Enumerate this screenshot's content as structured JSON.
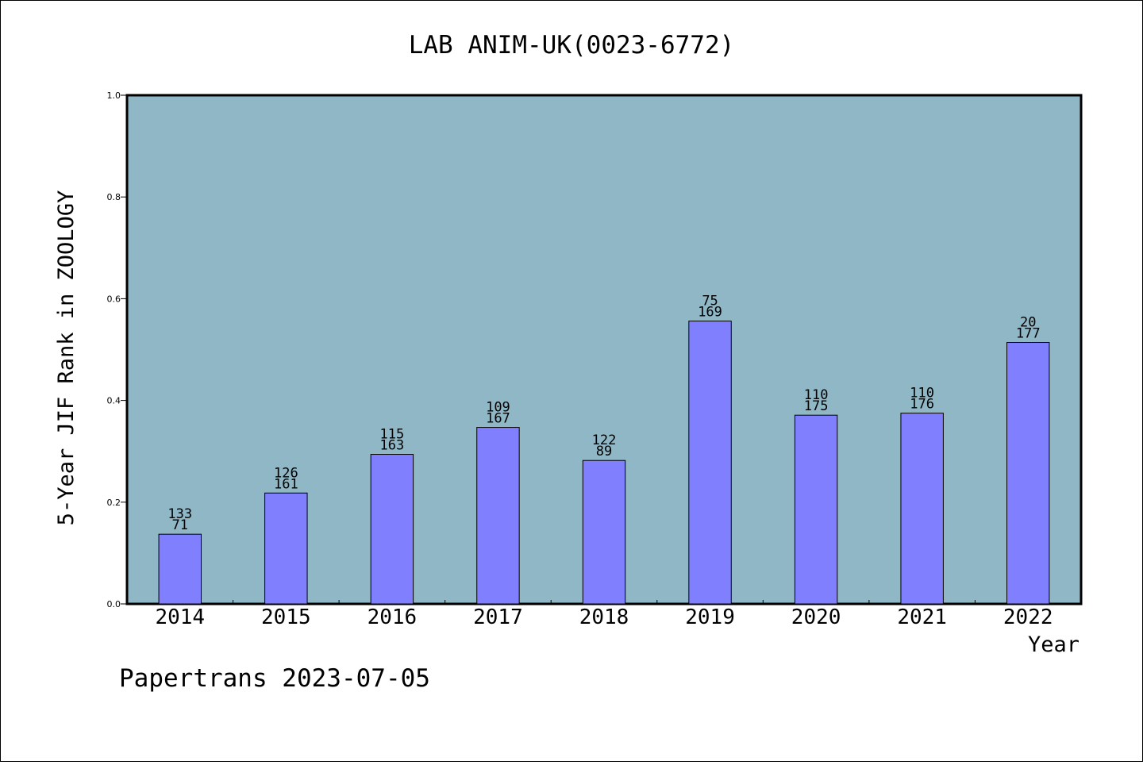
{
  "chart_data": {
    "type": "bar",
    "title": "LAB ANIM-UK(0023-6772)",
    "xlabel": "Year",
    "ylabel": "5-Year JIF Rank in ZOOLOGY",
    "categories": [
      "2014",
      "2015",
      "2016",
      "2017",
      "2018",
      "2019",
      "2020",
      "2021",
      "2022"
    ],
    "values": [
      0.137,
      0.218,
      0.294,
      0.347,
      0.282,
      0.556,
      0.371,
      0.375,
      0.514
    ],
    "labels_top": [
      "133",
      "126",
      "115",
      "109",
      "122",
      "75",
      "110",
      "110",
      "20"
    ],
    "labels_bottom": [
      "71",
      "161",
      "163",
      "167",
      "89",
      "169",
      "175",
      "176",
      "177"
    ],
    "ylim": [
      0,
      1.0
    ],
    "yticks": [
      "0.0",
      "0.2",
      "0.4",
      "0.6",
      "0.8",
      "1.0"
    ],
    "grid": false,
    "colors": {
      "plot_background": "#8fb7c5",
      "bar": "#8080ff"
    }
  },
  "footer": "Papertrans 2023-07-05"
}
